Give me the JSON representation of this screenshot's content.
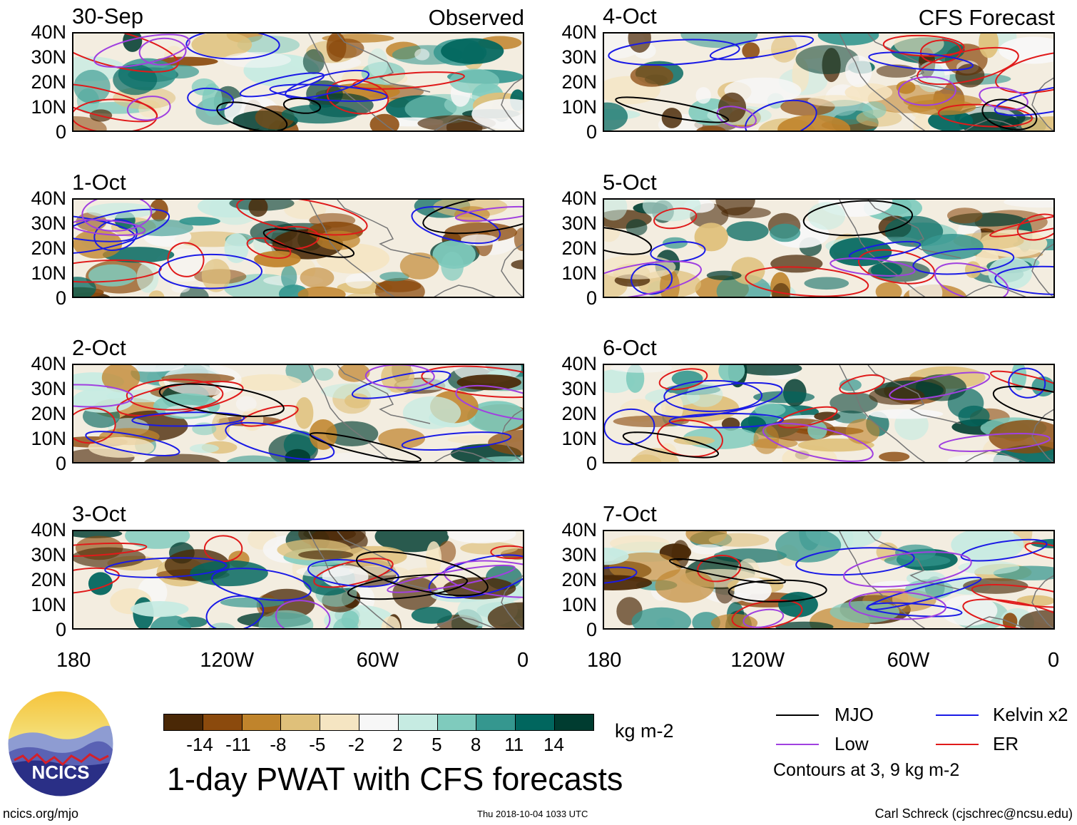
{
  "panels": [
    {
      "date": "30-Sep",
      "corner": "Observed"
    },
    {
      "date": "1-Oct",
      "corner": ""
    },
    {
      "date": "2-Oct",
      "corner": ""
    },
    {
      "date": "3-Oct",
      "corner": ""
    },
    {
      "date": "4-Oct",
      "corner": "CFS Forecast"
    },
    {
      "date": "5-Oct",
      "corner": ""
    },
    {
      "date": "6-Oct",
      "corner": ""
    },
    {
      "date": "7-Oct",
      "corner": ""
    }
  ],
  "lat_labels": [
    "40N",
    "30N",
    "20N",
    "10N",
    "0"
  ],
  "lon_labels": [
    "180",
    "120W",
    "60W",
    "0"
  ],
  "colorbar": {
    "colors": [
      "#4a2806",
      "#8b4a0d",
      "#c0842c",
      "#dfc07a",
      "#f5e5c2",
      "#f7f7f7",
      "#c6ebe2",
      "#7fcbbd",
      "#35978f",
      "#01665e",
      "#003c30"
    ],
    "ticks": [
      "-14",
      "-11",
      "-8",
      "-5",
      "-2",
      "2",
      "5",
      "8",
      "11",
      "14"
    ],
    "units": "kg m-2"
  },
  "legend": {
    "items": [
      {
        "label": "MJO",
        "color": "#000000"
      },
      {
        "label": "Kelvin x2",
        "color": "#1a1ae6"
      },
      {
        "label": "Low",
        "color": "#a040e0"
      },
      {
        "label": "ER",
        "color": "#e01a1a"
      }
    ],
    "note": "Contours at 3, 9 kg m-2"
  },
  "title": "1-day PWAT with CFS forecasts",
  "logo": {
    "text": "NCICS"
  },
  "footer": {
    "url": "ncics.org/mjo",
    "timestamp": "Thu 2018-10-04 1033 UTC",
    "credit": "Carl Schreck (cjschrec@ncsu.edu)"
  }
}
